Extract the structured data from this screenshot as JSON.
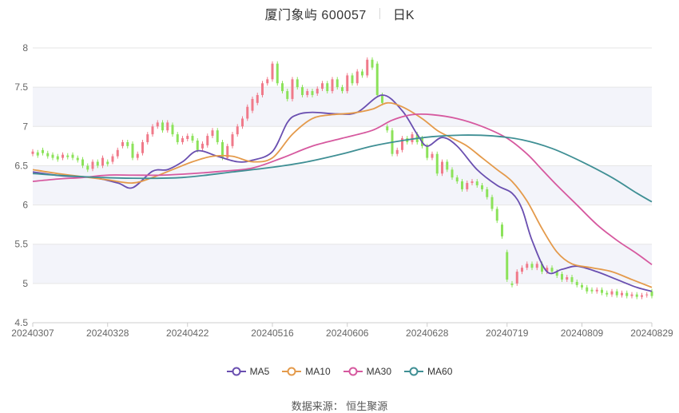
{
  "header": {
    "title": "厦门象屿 600057",
    "period": "日K"
  },
  "source_text": "数据来源： 恒生聚源",
  "colors": {
    "up": "#f07a8a",
    "down": "#8ce25a",
    "grid": "#e6e6e6",
    "band": "#f3f4fa",
    "axis_text": "#666666"
  },
  "chart_data": {
    "type": "candlestick",
    "ylim": [
      4.5,
      8
    ],
    "yticks": [
      "4.5",
      "5",
      "5.5",
      "6",
      "6.5",
      "7",
      "7.5",
      "8"
    ],
    "xticks": [
      "20240307",
      "20240328",
      "20240422",
      "20240516",
      "20240606",
      "20240628",
      "20240719",
      "20240809",
      "20240829"
    ],
    "xtick_index": [
      0,
      15,
      31,
      48,
      63,
      79,
      95,
      110,
      124
    ],
    "series": [
      {
        "name": "MA5",
        "color": "#6a4fb0"
      },
      {
        "name": "MA10",
        "color": "#e49a4b"
      },
      {
        "name": "MA30",
        "color": "#d6599f"
      },
      {
        "name": "MA60",
        "color": "#3f8f94"
      }
    ],
    "candles": [
      [
        6.65,
        6.68
      ],
      [
        6.67,
        6.63
      ],
      [
        6.7,
        6.66
      ],
      [
        6.66,
        6.62
      ],
      [
        6.64,
        6.6
      ],
      [
        6.62,
        6.58
      ],
      [
        6.6,
        6.64
      ],
      [
        6.63,
        6.61
      ],
      [
        6.64,
        6.6
      ],
      [
        6.6,
        6.57
      ],
      [
        6.58,
        6.5
      ],
      [
        6.5,
        6.45
      ],
      [
        6.46,
        6.55
      ],
      [
        6.55,
        6.5
      ],
      [
        6.5,
        6.6
      ],
      [
        6.55,
        6.52
      ],
      [
        6.55,
        6.62
      ],
      [
        6.62,
        6.7
      ],
      [
        6.75,
        6.8
      ],
      [
        6.8,
        6.75
      ],
      [
        6.78,
        6.6
      ],
      [
        6.6,
        6.65
      ],
      [
        6.66,
        6.8
      ],
      [
        6.8,
        6.9
      ],
      [
        6.9,
        7.0
      ],
      [
        7.0,
        7.05
      ],
      [
        7.05,
        6.95
      ],
      [
        6.95,
        7.05
      ],
      [
        7.02,
        6.9
      ],
      [
        6.9,
        6.8
      ],
      [
        6.8,
        6.85
      ],
      [
        6.84,
        6.88
      ],
      [
        6.88,
        6.82
      ],
      [
        6.82,
        6.7
      ],
      [
        6.72,
        6.78
      ],
      [
        6.76,
        6.88
      ],
      [
        6.88,
        6.95
      ],
      [
        6.95,
        6.8
      ],
      [
        6.8,
        6.6
      ],
      [
        6.6,
        6.75
      ],
      [
        6.75,
        6.9
      ],
      [
        6.9,
        7.0
      ],
      [
        7.0,
        7.1
      ],
      [
        7.1,
        7.25
      ],
      [
        7.2,
        7.35
      ],
      [
        7.3,
        7.4
      ],
      [
        7.4,
        7.55
      ],
      [
        7.55,
        7.6
      ],
      [
        7.6,
        7.8
      ],
      [
        7.8,
        7.55
      ],
      [
        7.55,
        7.45
      ],
      [
        7.45,
        7.35
      ],
      [
        7.35,
        7.6
      ],
      [
        7.6,
        7.5
      ],
      [
        7.5,
        7.4
      ],
      [
        7.4,
        7.45
      ],
      [
        7.45,
        7.4
      ],
      [
        7.42,
        7.48
      ],
      [
        7.48,
        7.55
      ],
      [
        7.55,
        7.45
      ],
      [
        7.45,
        7.6
      ],
      [
        7.6,
        7.5
      ],
      [
        7.5,
        7.45
      ],
      [
        7.45,
        7.65
      ],
      [
        7.65,
        7.55
      ],
      [
        7.55,
        7.7
      ],
      [
        7.7,
        7.65
      ],
      [
        7.65,
        7.85
      ],
      [
        7.85,
        7.75
      ],
      [
        7.8,
        7.4
      ],
      [
        7.4,
        7.3
      ],
      [
        7.0,
        6.95
      ],
      [
        6.95,
        6.65
      ],
      [
        6.65,
        6.7
      ],
      [
        6.7,
        6.85
      ],
      [
        6.85,
        6.8
      ],
      [
        6.8,
        6.9
      ],
      [
        6.9,
        6.8
      ],
      [
        6.85,
        6.75
      ],
      [
        6.75,
        6.6
      ],
      [
        6.6,
        6.65
      ],
      [
        6.65,
        6.4
      ],
      [
        6.4,
        6.55
      ],
      [
        6.55,
        6.45
      ],
      [
        6.45,
        6.35
      ],
      [
        6.35,
        6.3
      ],
      [
        6.3,
        6.2
      ],
      [
        6.2,
        6.28
      ],
      [
        6.28,
        6.3
      ],
      [
        6.3,
        6.25
      ],
      [
        6.25,
        6.2
      ],
      [
        6.2,
        6.1
      ],
      [
        6.1,
        5.95
      ],
      [
        5.95,
        5.8
      ],
      [
        5.75,
        5.6
      ],
      [
        5.4,
        5.05
      ],
      [
        5.0,
        4.98
      ],
      [
        5.0,
        5.15
      ],
      [
        5.15,
        5.2
      ],
      [
        5.2,
        5.25
      ],
      [
        5.25,
        5.2
      ],
      [
        5.2,
        5.25
      ],
      [
        5.25,
        5.15
      ],
      [
        5.15,
        5.2
      ],
      [
        5.2,
        5.15
      ],
      [
        5.15,
        5.1
      ],
      [
        5.12,
        5.05
      ],
      [
        5.05,
        5.08
      ],
      [
        5.08,
        5.02
      ],
      [
        5.02,
        4.98
      ],
      [
        4.98,
        4.95
      ],
      [
        4.95,
        4.9
      ],
      [
        4.92,
        4.9
      ],
      [
        4.9,
        4.92
      ],
      [
        4.92,
        4.88
      ],
      [
        4.88,
        4.86
      ],
      [
        4.86,
        4.9
      ],
      [
        4.9,
        4.85
      ],
      [
        4.85,
        4.88
      ],
      [
        4.88,
        4.84
      ],
      [
        4.84,
        4.86
      ],
      [
        4.86,
        4.83
      ],
      [
        4.83,
        4.85
      ],
      [
        4.85,
        4.86
      ],
      [
        4.9,
        4.84
      ]
    ],
    "ma5": [
      [
        0,
        6.42
      ],
      [
        6,
        6.37
      ],
      [
        12,
        6.35
      ],
      [
        17,
        6.28
      ],
      [
        20,
        6.22
      ],
      [
        24,
        6.43
      ],
      [
        27,
        6.45
      ],
      [
        30,
        6.55
      ],
      [
        33,
        6.69
      ],
      [
        37,
        6.62
      ],
      [
        41,
        6.55
      ],
      [
        44,
        6.57
      ],
      [
        48,
        6.68
      ],
      [
        51,
        7.05
      ],
      [
        53,
        7.15
      ],
      [
        56,
        7.18
      ],
      [
        61,
        7.16
      ],
      [
        65,
        7.18
      ],
      [
        70,
        7.4
      ],
      [
        74,
        7.2
      ],
      [
        77,
        6.9
      ],
      [
        79,
        6.75
      ],
      [
        82,
        6.86
      ],
      [
        85,
        6.75
      ],
      [
        89,
        6.45
      ],
      [
        93,
        6.25
      ],
      [
        96,
        6.15
      ],
      [
        98,
        5.95
      ],
      [
        100,
        5.55
      ],
      [
        103,
        5.15
      ],
      [
        106,
        5.18
      ],
      [
        109,
        5.22
      ],
      [
        113,
        5.15
      ],
      [
        117,
        5.05
      ],
      [
        121,
        4.95
      ],
      [
        124,
        4.9
      ]
    ],
    "ma10": [
      [
        0,
        6.45
      ],
      [
        5,
        6.4
      ],
      [
        10,
        6.36
      ],
      [
        15,
        6.32
      ],
      [
        20,
        6.28
      ],
      [
        24,
        6.35
      ],
      [
        28,
        6.45
      ],
      [
        32,
        6.55
      ],
      [
        36,
        6.62
      ],
      [
        40,
        6.62
      ],
      [
        44,
        6.55
      ],
      [
        48,
        6.6
      ],
      [
        52,
        6.9
      ],
      [
        56,
        7.1
      ],
      [
        60,
        7.15
      ],
      [
        64,
        7.17
      ],
      [
        68,
        7.22
      ],
      [
        71,
        7.3
      ],
      [
        74,
        7.25
      ],
      [
        78,
        7.1
      ],
      [
        81,
        6.95
      ],
      [
        84,
        6.85
      ],
      [
        87,
        6.75
      ],
      [
        90,
        6.6
      ],
      [
        93,
        6.45
      ],
      [
        96,
        6.3
      ],
      [
        99,
        6.05
      ],
      [
        102,
        5.7
      ],
      [
        105,
        5.4
      ],
      [
        108,
        5.25
      ],
      [
        112,
        5.2
      ],
      [
        116,
        5.15
      ],
      [
        120,
        5.05
      ],
      [
        124,
        4.95
      ]
    ],
    "ma30": [
      [
        0,
        6.3
      ],
      [
        5,
        6.33
      ],
      [
        10,
        6.35
      ],
      [
        15,
        6.38
      ],
      [
        20,
        6.38
      ],
      [
        26,
        6.38
      ],
      [
        32,
        6.4
      ],
      [
        38,
        6.43
      ],
      [
        44,
        6.47
      ],
      [
        50,
        6.6
      ],
      [
        56,
        6.75
      ],
      [
        62,
        6.85
      ],
      [
        68,
        6.95
      ],
      [
        72,
        7.08
      ],
      [
        76,
        7.15
      ],
      [
        80,
        7.15
      ],
      [
        85,
        7.1
      ],
      [
        90,
        7.0
      ],
      [
        95,
        6.85
      ],
      [
        99,
        6.65
      ],
      [
        102,
        6.45
      ],
      [
        105,
        6.25
      ],
      [
        109,
        6.0
      ],
      [
        113,
        5.75
      ],
      [
        117,
        5.55
      ],
      [
        121,
        5.38
      ],
      [
        124,
        5.24
      ]
    ],
    "ma60": [
      [
        0,
        6.4
      ],
      [
        10,
        6.36
      ],
      [
        20,
        6.34
      ],
      [
        30,
        6.35
      ],
      [
        40,
        6.42
      ],
      [
        48,
        6.48
      ],
      [
        55,
        6.55
      ],
      [
        62,
        6.65
      ],
      [
        68,
        6.75
      ],
      [
        74,
        6.82
      ],
      [
        80,
        6.87
      ],
      [
        86,
        6.89
      ],
      [
        92,
        6.88
      ],
      [
        98,
        6.83
      ],
      [
        104,
        6.72
      ],
      [
        110,
        6.55
      ],
      [
        116,
        6.35
      ],
      [
        121,
        6.15
      ],
      [
        124,
        6.04
      ]
    ]
  }
}
